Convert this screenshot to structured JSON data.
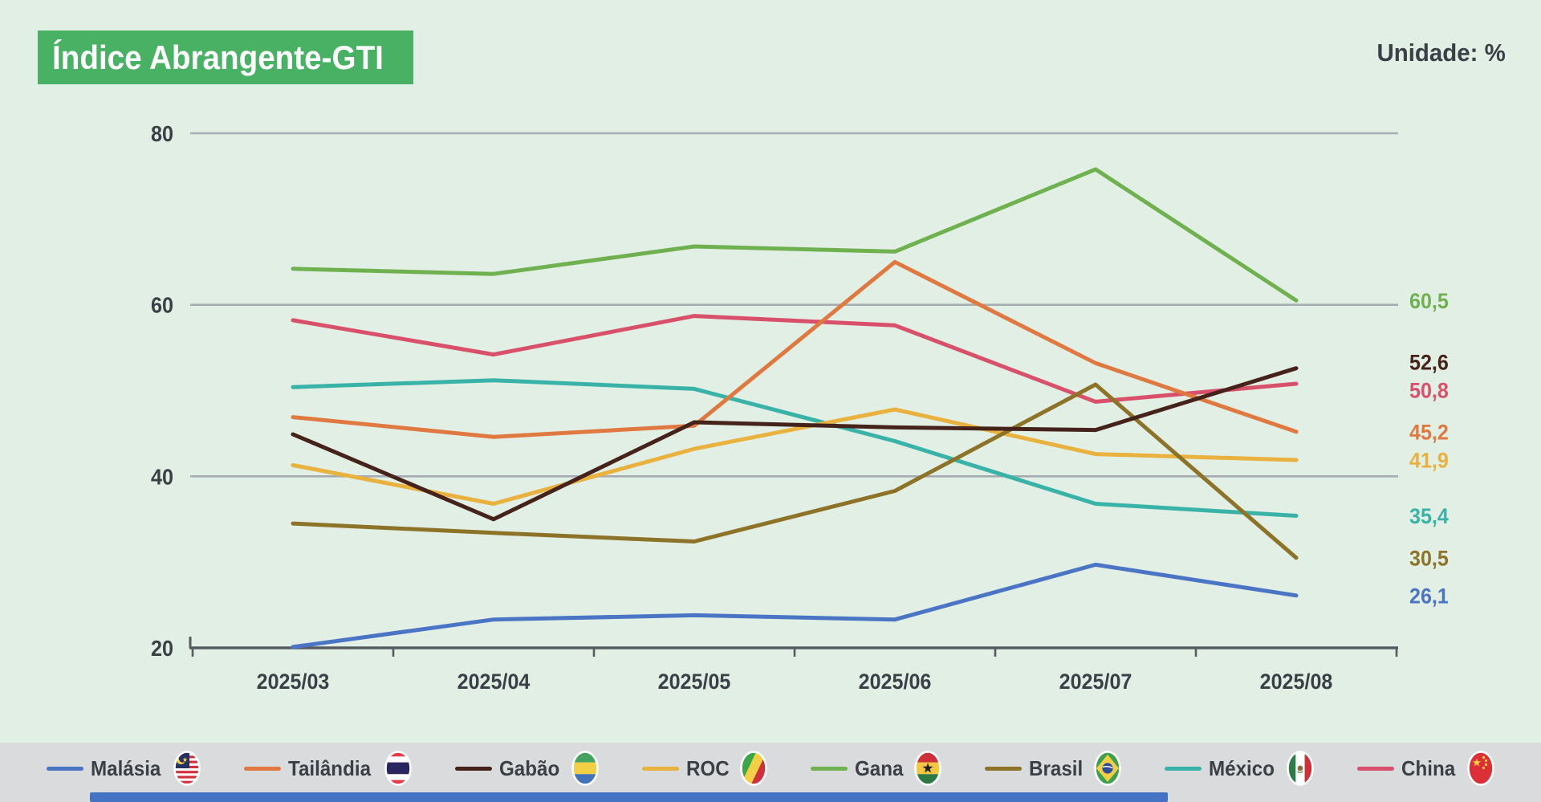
{
  "header": {
    "title": "Índice Abrangente-GTI",
    "unit_label": "Unidade: %"
  },
  "colors": {
    "background": "#e1efe5",
    "title_badge": "#48b163",
    "title_text": "#ffffff",
    "text": "#3b4046",
    "grid": "#a6acb2",
    "axis": "#575b60",
    "legend_band": "#dadbdd",
    "bottom_bar": "#4573c4"
  },
  "chart_data": {
    "type": "line",
    "title": "Índice Abrangente-GTI",
    "unit": "%",
    "x": [
      "2025/03",
      "2025/04",
      "2025/05",
      "2025/06",
      "2025/07",
      "2025/08"
    ],
    "yticks": [
      80,
      60,
      40,
      20
    ],
    "ylim": [
      20,
      80
    ],
    "grid": "horizontal",
    "legend_position": "bottom",
    "series": [
      {
        "name": "Malásia",
        "flag": "malaysia",
        "color": "#4a74c4",
        "values": [
          20.1,
          23.3,
          23.8,
          23.3,
          29.7,
          26.1
        ],
        "end_label": "26,1"
      },
      {
        "name": "Tailândia",
        "flag": "thailand",
        "color": "#e0793f",
        "values": [
          46.9,
          44.6,
          45.9,
          65.0,
          53.2,
          45.2
        ],
        "end_label": "45,2"
      },
      {
        "name": "Gabão",
        "flag": "gabon",
        "color": "#45231b",
        "values": [
          44.9,
          35.0,
          46.3,
          45.7,
          45.4,
          52.6
        ],
        "end_label": "52,6"
      },
      {
        "name": "ROC",
        "flag": "roc",
        "color": "#e9b13d",
        "values": [
          41.3,
          36.8,
          43.2,
          47.8,
          42.6,
          41.9
        ],
        "end_label": "41,9"
      },
      {
        "name": "Gana",
        "flag": "ghana",
        "color": "#70b14f",
        "values": [
          64.2,
          63.6,
          66.8,
          66.2,
          75.8,
          60.5
        ],
        "end_label": "60,5"
      },
      {
        "name": "Brasil",
        "flag": "brazil",
        "color": "#8d7327",
        "values": [
          34.5,
          33.4,
          32.4,
          38.3,
          50.7,
          30.5
        ],
        "end_label": "30,5"
      },
      {
        "name": "México",
        "flag": "mexico",
        "color": "#39b3a7",
        "values": [
          50.4,
          51.2,
          50.2,
          44.1,
          36.8,
          35.4
        ],
        "end_label": "35,4"
      },
      {
        "name": "China",
        "flag": "china",
        "color": "#d85069",
        "values": [
          58.2,
          54.2,
          58.7,
          57.6,
          48.7,
          50.8
        ],
        "end_label": "50,8"
      }
    ]
  }
}
